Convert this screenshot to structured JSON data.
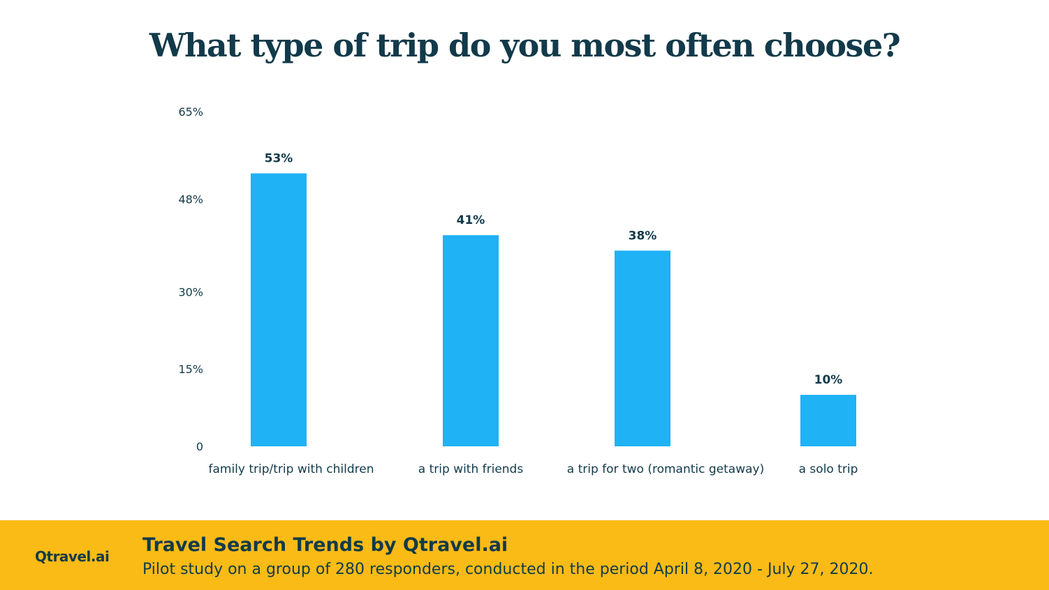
{
  "title": "What type of trip do you most often choose?",
  "chart_data": {
    "type": "bar",
    "title": "What type of trip do you most often choose?",
    "categories": [
      "family trip/trip with children",
      "a trip with friends",
      "a trip for two (romantic getaway)",
      "a solo trip"
    ],
    "values": [
      53,
      41,
      38,
      10
    ],
    "value_labels": [
      "53%",
      "41%",
      "38%",
      "10%"
    ],
    "yticks": [
      0,
      15,
      30,
      48,
      65
    ],
    "ytick_labels": [
      "0",
      "15%",
      "30%",
      "48%",
      "65%"
    ],
    "ylim": [
      0,
      65
    ],
    "grid": false,
    "bar_color": "#1fb2f5"
  },
  "footer": {
    "logo": "Qtravel.ai",
    "title": "Travel Search Trends by Qtravel.ai",
    "subtitle": "Pilot study on a group of 280 responders, conducted in the period April 8, 2020 - July 27, 2020.",
    "background_color": "#fbbb16"
  }
}
